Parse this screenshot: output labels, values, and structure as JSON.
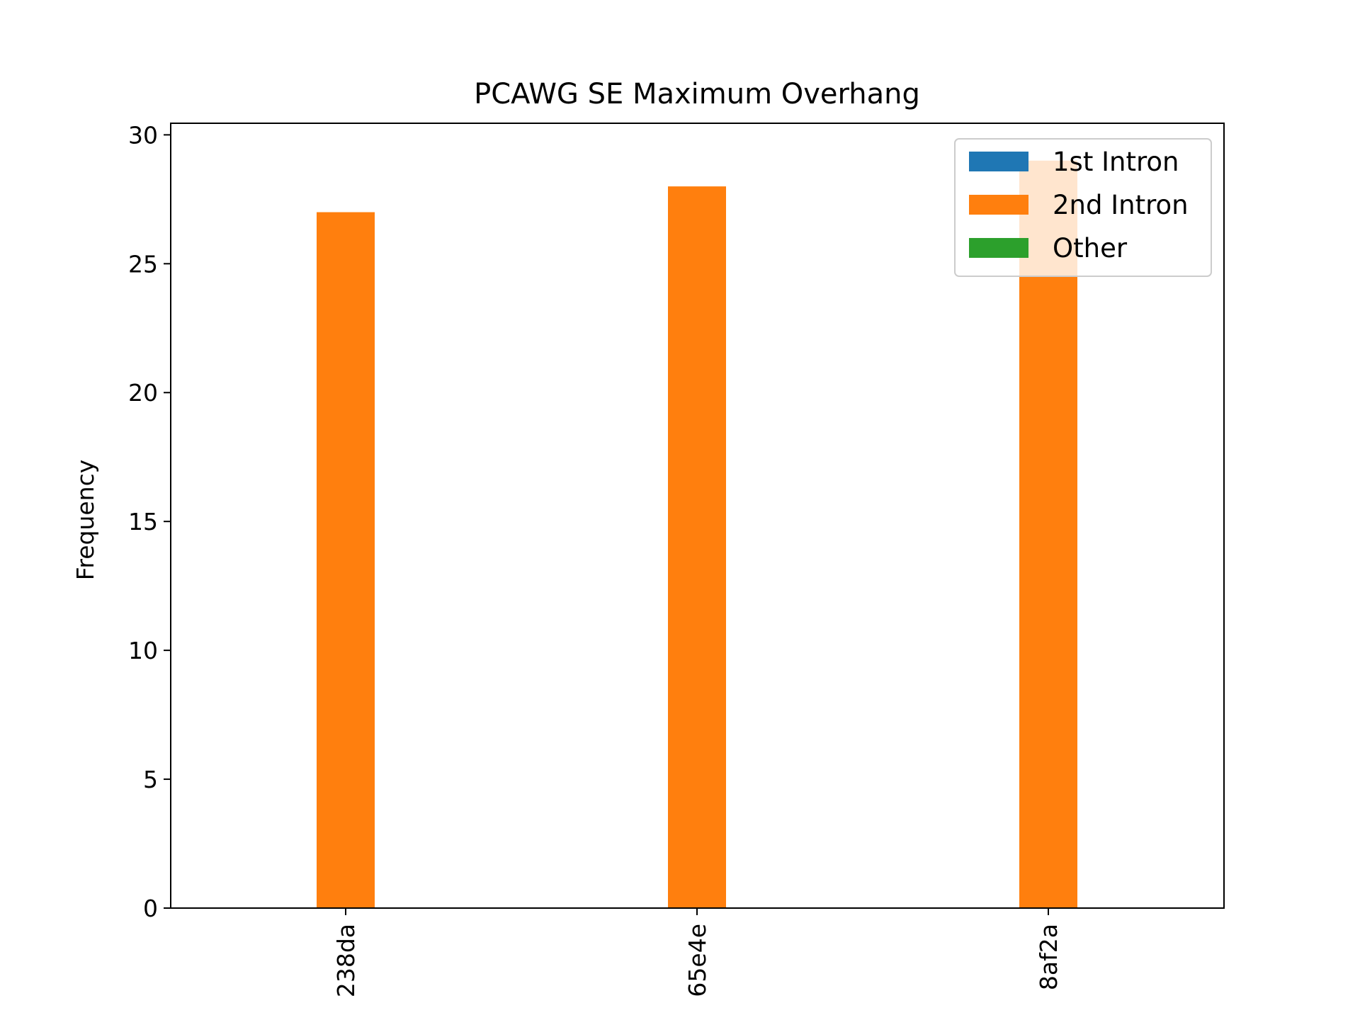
{
  "chart_data": {
    "type": "bar",
    "title": "PCAWG SE Maximum Overhang",
    "xlabel": "",
    "ylabel": "Frequency",
    "categories": [
      "238da",
      "65e4e",
      "8af2a"
    ],
    "series": [
      {
        "name": "1st Intron",
        "color": "#1f77b4",
        "values": [
          0,
          0,
          0
        ]
      },
      {
        "name": "2nd Intron",
        "color": "#ff7f0e",
        "values": [
          27,
          28,
          29
        ]
      },
      {
        "name": "Other",
        "color": "#2ca02c",
        "values": [
          0,
          0,
          0
        ]
      }
    ],
    "ylim": [
      0,
      30.45
    ],
    "yticks": [
      0,
      5,
      10,
      15,
      20,
      25,
      30
    ],
    "grid": false,
    "legend_position": "top-right"
  }
}
